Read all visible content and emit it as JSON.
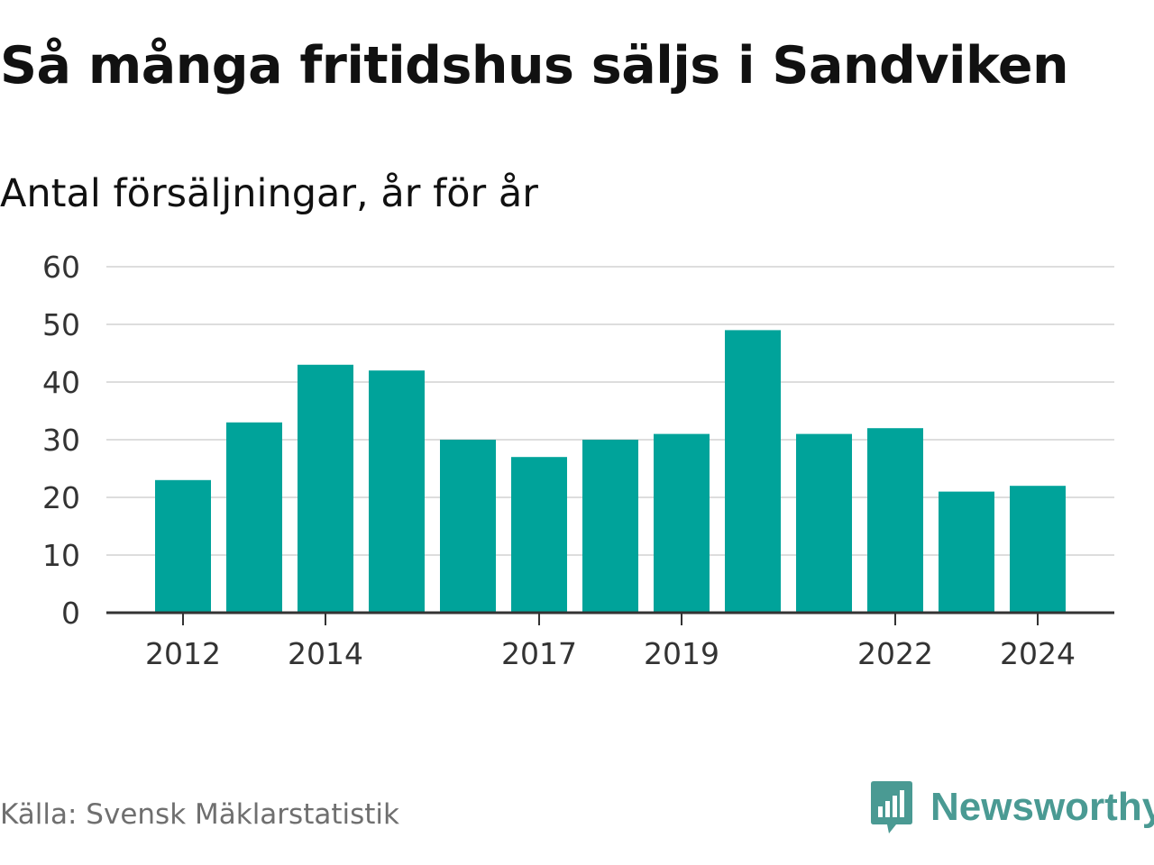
{
  "title": "Så många fritidshus säljs i Sandviken",
  "subtitle": "Antal försäljningar, år för år",
  "source": "Källa: Svensk Mäklarstatistik",
  "brand": {
    "name": "Newsworthy",
    "icon": "newsworthy-chart-bubble-icon",
    "color": "#4a9a93"
  },
  "chart_data": {
    "type": "bar",
    "x": [
      2012,
      2013,
      2014,
      2015,
      2016,
      2017,
      2018,
      2019,
      2020,
      2021,
      2022,
      2023,
      2024
    ],
    "values": [
      23,
      33,
      43,
      42,
      30,
      27,
      30,
      31,
      49,
      31,
      32,
      21,
      22
    ],
    "x_tick_labels": [
      "2012",
      "2014",
      "2017",
      "2019",
      "2022",
      "2024"
    ],
    "y_ticks": [
      0,
      10,
      20,
      30,
      40,
      50,
      60
    ],
    "ylim": [
      0,
      60
    ],
    "grid": true,
    "bar_color": "#00a39a",
    "gridline_color": "#dddddd",
    "axis_color": "#333333"
  }
}
